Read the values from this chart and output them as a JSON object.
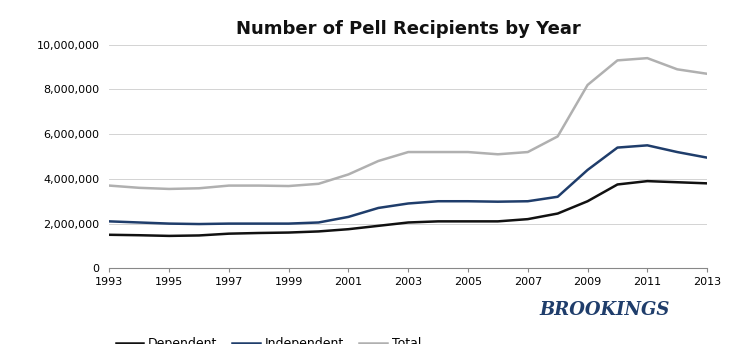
{
  "title": "Number of Pell Recipients by Year",
  "years": [
    1993,
    1994,
    1995,
    1996,
    1997,
    1998,
    1999,
    2000,
    2001,
    2002,
    2003,
    2004,
    2005,
    2006,
    2007,
    2008,
    2009,
    2010,
    2011,
    2012,
    2013
  ],
  "dependent": [
    1500000,
    1480000,
    1450000,
    1470000,
    1550000,
    1580000,
    1600000,
    1650000,
    1750000,
    1900000,
    2050000,
    2100000,
    2100000,
    2100000,
    2200000,
    2450000,
    3000000,
    3750000,
    3900000,
    3850000,
    3800000
  ],
  "independent": [
    2100000,
    2050000,
    2000000,
    1980000,
    2000000,
    2000000,
    2000000,
    2050000,
    2300000,
    2700000,
    2900000,
    3000000,
    3000000,
    2980000,
    3000000,
    3200000,
    4400000,
    5400000,
    5500000,
    5200000,
    4950000
  ],
  "total": [
    3700000,
    3600000,
    3550000,
    3580000,
    3700000,
    3700000,
    3680000,
    3780000,
    4200000,
    4800000,
    5200000,
    5200000,
    5200000,
    5100000,
    5200000,
    5900000,
    8200000,
    9300000,
    9400000,
    8900000,
    8700000
  ],
  "ylim": [
    0,
    10000000
  ],
  "yticks": [
    0,
    2000000,
    4000000,
    6000000,
    8000000,
    10000000
  ],
  "xticks": [
    1993,
    1995,
    1997,
    1999,
    2001,
    2003,
    2005,
    2007,
    2009,
    2011,
    2013
  ],
  "dependent_color": "#111111",
  "independent_color": "#1f3d6b",
  "total_color": "#b0b0b0",
  "line_width": 1.8,
  "legend_labels": [
    "Dependent",
    "Independent",
    "Total"
  ],
  "brookings_color": "#1f3d6b",
  "background_color": "#ffffff",
  "grid_color": "#cccccc"
}
